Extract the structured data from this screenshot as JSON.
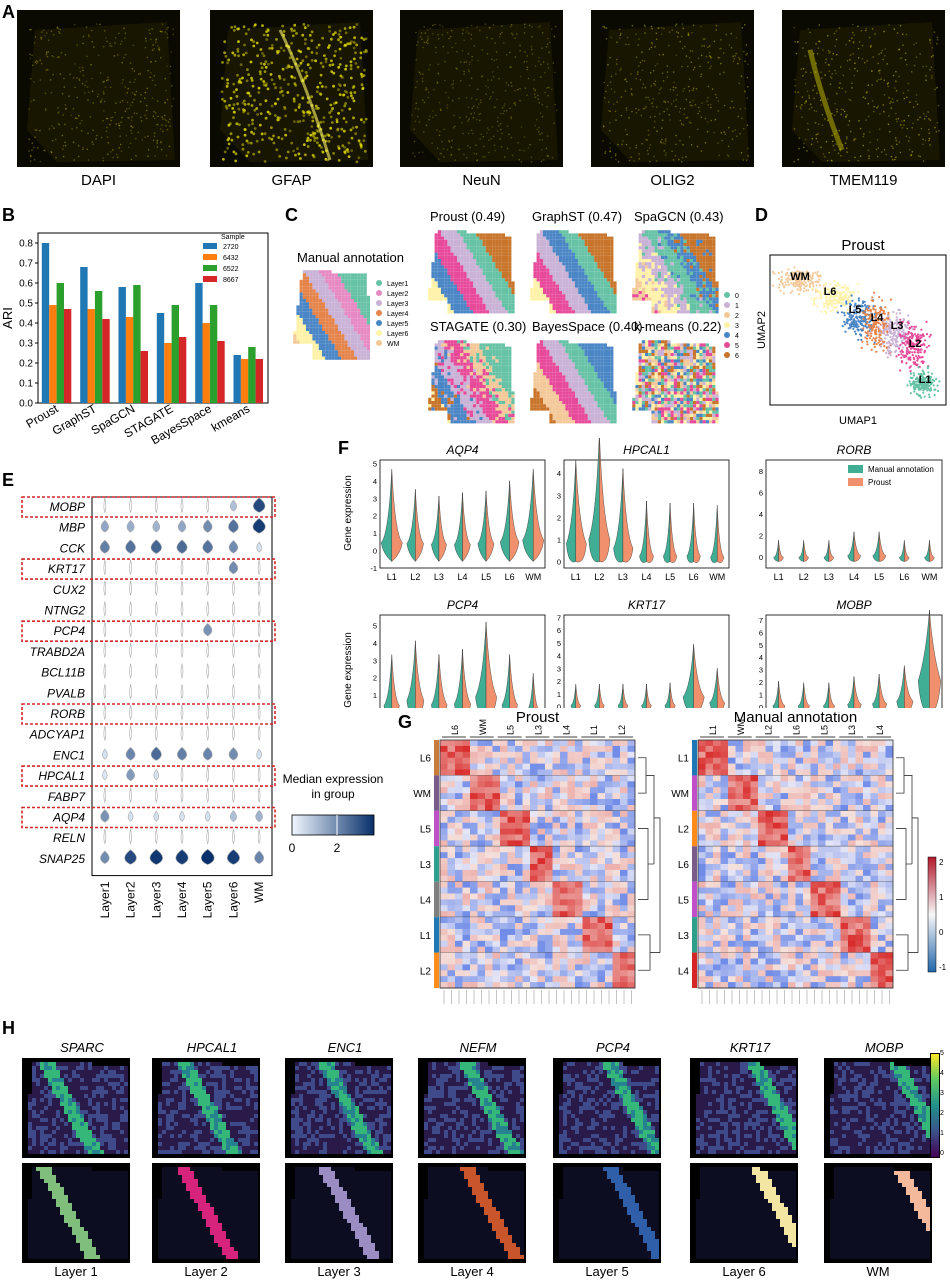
{
  "panels": {
    "A": "A",
    "B": "B",
    "C": "C",
    "D": "D",
    "E": "E",
    "F": "F",
    "G": "G",
    "H": "H"
  },
  "panelA": {
    "captions": [
      "DAPI",
      "GFAP",
      "NeuN",
      "OLIG2",
      "TMEM119"
    ]
  },
  "panelB": {
    "chart_data": {
      "type": "bar",
      "categories": [
        "Proust",
        "GraphST",
        "SpaGCN",
        "STAGATE",
        "BayesSpace",
        "kmeans"
      ],
      "series": [
        {
          "name": "2720",
          "color": "#1f77b4",
          "values": [
            0.8,
            0.68,
            0.58,
            0.45,
            0.6,
            0.24
          ]
        },
        {
          "name": "6432",
          "color": "#ff7f0e",
          "values": [
            0.49,
            0.47,
            0.43,
            0.3,
            0.4,
            0.22
          ]
        },
        {
          "name": "6522",
          "color": "#2ca02c",
          "values": [
            0.6,
            0.56,
            0.59,
            0.49,
            0.49,
            0.28
          ]
        },
        {
          "name": "8667",
          "color": "#d62728",
          "values": [
            0.47,
            0.42,
            0.26,
            0.33,
            0.31,
            0.22
          ]
        }
      ],
      "ylabel": "ARI",
      "legend_title": "Sample",
      "ylim": [
        0,
        0.85
      ],
      "yticks": [
        "0.0",
        "0.1",
        "0.2",
        "0.3",
        "0.4",
        "0.5",
        "0.6",
        "0.7",
        "0.8"
      ],
      "legend_position": "top-right"
    }
  },
  "panelC": {
    "manual_title": "Manual annotation",
    "methods": [
      "Proust (0.49)",
      "GraphST (0.47)",
      "SpaGCN (0.43)",
      "STAGATE (0.30)",
      "BayesSpace (0.40)",
      "k-means (0.22)"
    ],
    "layer_legend": [
      {
        "label": "Layer1",
        "color": "#66c2a5"
      },
      {
        "label": "Layer2",
        "color": "#e78ac3"
      },
      {
        "label": "Layer3",
        "color": "#cab2d6"
      },
      {
        "label": "Layer4",
        "color": "#e5844a"
      },
      {
        "label": "Layer5",
        "color": "#4a86c5"
      },
      {
        "label": "Layer6",
        "color": "#fff2a8"
      },
      {
        "label": "WM",
        "color": "#f4c99a"
      }
    ],
    "cluster_legend": [
      {
        "label": "0",
        "color": "#66c2a5"
      },
      {
        "label": "1",
        "color": "#cab2d6"
      },
      {
        "label": "2",
        "color": "#f4c99a"
      },
      {
        "label": "3",
        "color": "#fff2a8"
      },
      {
        "label": "4",
        "color": "#4a86c5"
      },
      {
        "label": "5",
        "color": "#e84a9a"
      },
      {
        "label": "6",
        "color": "#c8742a"
      }
    ]
  },
  "panelD": {
    "title": "Proust",
    "xlabel": "UMAP1",
    "ylabel": "UMAP2",
    "labels": [
      "WM",
      "L6",
      "L5",
      "L4",
      "L3",
      "L2",
      "L1"
    ]
  },
  "panelE": {
    "genes": [
      "MOBP",
      "MBP",
      "CCK",
      "KRT17",
      "CUX2",
      "NTNG2",
      "PCP4",
      "TRABD2A",
      "BCL11B",
      "PVALB",
      "RORB",
      "ADCYAP1",
      "ENC1",
      "HPCAL1",
      "FABP7",
      "AQP4",
      "RELN",
      "SNAP25"
    ],
    "highlighted": [
      "MOBP",
      "KRT17",
      "PCP4",
      "RORB",
      "HPCAL1",
      "AQP4"
    ],
    "groups": [
      "Layer1",
      "Layer2",
      "Layer3",
      "Layer4",
      "Layer5",
      "Layer6",
      "WM"
    ],
    "median": [
      [
        0,
        0,
        0,
        0,
        0,
        0.8,
        2.6
      ],
      [
        1.2,
        1.1,
        1.0,
        1.2,
        1.6,
        2.0,
        2.8
      ],
      [
        1.8,
        2.0,
        2.2,
        2.1,
        2.0,
        1.6,
        0.3
      ],
      [
        0,
        0,
        0,
        0,
        0,
        1.6,
        0
      ],
      [
        0,
        0,
        0,
        0,
        0,
        0,
        0
      ],
      [
        0,
        0,
        0,
        0,
        0,
        0,
        0
      ],
      [
        0,
        0,
        0,
        0,
        1.5,
        0,
        0
      ],
      [
        0,
        0,
        0,
        0,
        0,
        0,
        0
      ],
      [
        0,
        0,
        0,
        0,
        0,
        0,
        0
      ],
      [
        0,
        0,
        0,
        0,
        0,
        0,
        0
      ],
      [
        0,
        0,
        0,
        0,
        0,
        0,
        0
      ],
      [
        0,
        0,
        0,
        0,
        0,
        0,
        0
      ],
      [
        0.3,
        1.7,
        2.1,
        1.8,
        1.7,
        1.6,
        0.3
      ],
      [
        0.2,
        1.4,
        0.3,
        0,
        0,
        0,
        0
      ],
      [
        0,
        0,
        0,
        0,
        0,
        0,
        0
      ],
      [
        1.5,
        0.3,
        0.3,
        0.3,
        0.3,
        0.8,
        1.0
      ],
      [
        0,
        0,
        0,
        0,
        0,
        0,
        0
      ],
      [
        1.6,
        2.6,
        2.9,
        2.8,
        3.0,
        2.8,
        1.7
      ]
    ],
    "colorbar_title": "Median expression\nin group",
    "colorbar_ticks": [
      "0",
      "2"
    ]
  },
  "panelF": {
    "ylabel": "Gene expression",
    "legend": [
      {
        "label": "Manual annotation",
        "color": "#3fae94"
      },
      {
        "label": "Proust",
        "color": "#f0906c"
      }
    ],
    "xcats": [
      "L1",
      "L2",
      "L3",
      "L4",
      "L5",
      "L6",
      "WM"
    ],
    "plots": [
      {
        "gene": "AQP4",
        "yticks": [
          "-1",
          "0",
          "1",
          "2",
          "3",
          "4",
          "5"
        ],
        "ylim": [
          -1,
          5.2
        ],
        "a": [
          2.6,
          1.5,
          1.2,
          1.4,
          1.4,
          1.8,
          2.3
        ],
        "b": [
          3.3,
          1.4,
          1.2,
          1.3,
          1.3,
          1.8,
          2.4
        ],
        "m": [
          0.9,
          0.8,
          0.7,
          0.7,
          0.8,
          1.0,
          1.2
        ]
      },
      {
        "gene": "HPCAL1",
        "yticks": [
          "0",
          "1",
          "2",
          "3",
          "4"
        ],
        "ylim": [
          -0.3,
          4.6
        ],
        "a": [
          1.8,
          2.7,
          1.8,
          1.0,
          0.9,
          0.9,
          0.9
        ],
        "b": [
          2.2,
          2.9,
          2.0,
          1.0,
          0.9,
          0.9,
          0.9
        ],
        "m": [
          1.6,
          2.0,
          1.2,
          0.5,
          0.5,
          0.5,
          0.4
        ]
      },
      {
        "gene": "RORB",
        "yticks": [
          "0",
          "2",
          "4",
          "6",
          "8"
        ],
        "ylim": [
          -1,
          9
        ],
        "a": [
          0.3,
          0.3,
          0.3,
          0.8,
          0.8,
          0.3,
          0.3
        ],
        "b": [
          0.3,
          0.3,
          0.3,
          0.9,
          0.9,
          0.3,
          0.3
        ],
        "m": [
          0,
          0,
          0,
          0.3,
          0.3,
          0,
          0
        ]
      },
      {
        "gene": "PCP4",
        "yticks": [
          "0",
          "1",
          "2",
          "3",
          "4",
          "5"
        ],
        "ylim": [
          -0.6,
          5.6
        ],
        "a": [
          1.3,
          1.5,
          1.2,
          1.4,
          2.2,
          1.2,
          0.7
        ],
        "b": [
          1.2,
          1.5,
          1.4,
          1.4,
          2.6,
          1.3,
          0.7
        ],
        "m": [
          0.8,
          1.4,
          0.9,
          1.0,
          1.8,
          0.9,
          0.3
        ]
      },
      {
        "gene": "KRT17",
        "yticks": [
          "-1",
          "0",
          "1",
          "2",
          "3",
          "4",
          "5",
          "6",
          "7"
        ],
        "ylim": [
          -1.3,
          7.2
        ],
        "a": [
          0.3,
          0.3,
          0.3,
          0.3,
          0.4,
          2.2,
          1.2
        ],
        "b": [
          0.3,
          0.3,
          0.3,
          0.3,
          0.4,
          2.6,
          1.2
        ],
        "m": [
          0.2,
          0.2,
          0.2,
          0.2,
          0.2,
          1.5,
          0.6
        ]
      },
      {
        "gene": "MOBP",
        "yticks": [
          "-1",
          "0",
          "1",
          "2",
          "3",
          "4",
          "5",
          "6",
          "7"
        ],
        "ylim": [
          -1.3,
          7.4
        ],
        "a": [
          0.6,
          0.5,
          0.5,
          0.8,
          0.9,
          1.2,
          2.4
        ],
        "b": [
          0.8,
          0.6,
          0.6,
          1.1,
          1.2,
          1.6,
          2.6
        ],
        "m": [
          0.2,
          0.2,
          0.2,
          0.4,
          0.5,
          0.9,
          4.2
        ]
      }
    ]
  },
  "panelG": {
    "left_title": "Proust",
    "right_title": "Manual annotation",
    "left_cols": [
      "L6",
      "WM",
      "L5",
      "L3",
      "L4",
      "L1",
      "L2"
    ],
    "left_rows": [
      "L6",
      "WM",
      "L5",
      "L3",
      "L4",
      "L1",
      "L2"
    ],
    "right_cols": [
      "L1",
      "WM",
      "L2",
      "L6",
      "L5",
      "L3",
      "L4"
    ],
    "right_rows": [
      "L1",
      "WM",
      "L2",
      "L6",
      "L5",
      "L3",
      "L4"
    ],
    "colorbar_ticks": [
      "2",
      "1",
      "0",
      "-1"
    ]
  },
  "panelH": {
    "genes": [
      "SPARC",
      "HPCAL1",
      "ENC1",
      "NEFM",
      "PCP4",
      "KRT17",
      "MOBP"
    ],
    "layers": [
      "Layer 1",
      "Layer 2",
      "Layer 3",
      "Layer 4",
      "Layer 5",
      "Layer 6",
      "WM"
    ],
    "layer_colors": [
      "#7fbf7b",
      "#d6247c",
      "#9b8cc4",
      "#c8562a",
      "#2f5fa8",
      "#f2e6a2",
      "#f4b89a"
    ],
    "colorbar_ticks": [
      "5",
      "4",
      "3",
      "2",
      "1",
      "0"
    ]
  }
}
